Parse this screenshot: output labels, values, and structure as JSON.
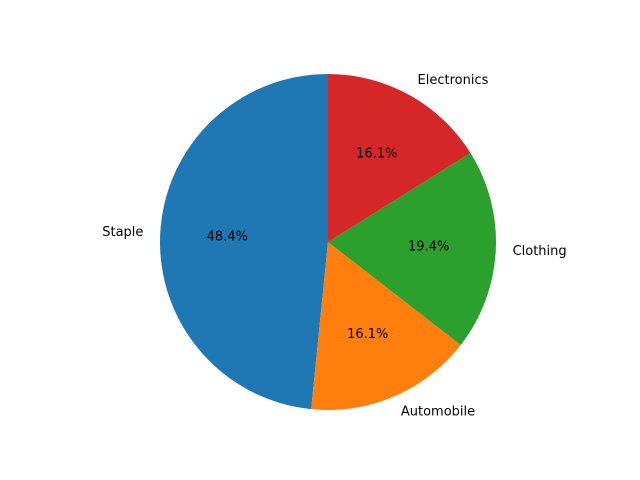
{
  "chart_data": {
    "type": "pie",
    "categories": [
      "Staple",
      "Automobile",
      "Clothing",
      "Electronics"
    ],
    "values": [
      48.4,
      16.1,
      19.4,
      16.1
    ],
    "percent_labels": [
      "48.4%",
      "16.1%",
      "19.4%",
      "16.1%"
    ],
    "colors": [
      "#1f77b4",
      "#ff7f0e",
      "#2ca02c",
      "#d62728"
    ],
    "start_angle_deg": 90,
    "direction": "counterclockwise",
    "title": "",
    "legend": "none"
  }
}
